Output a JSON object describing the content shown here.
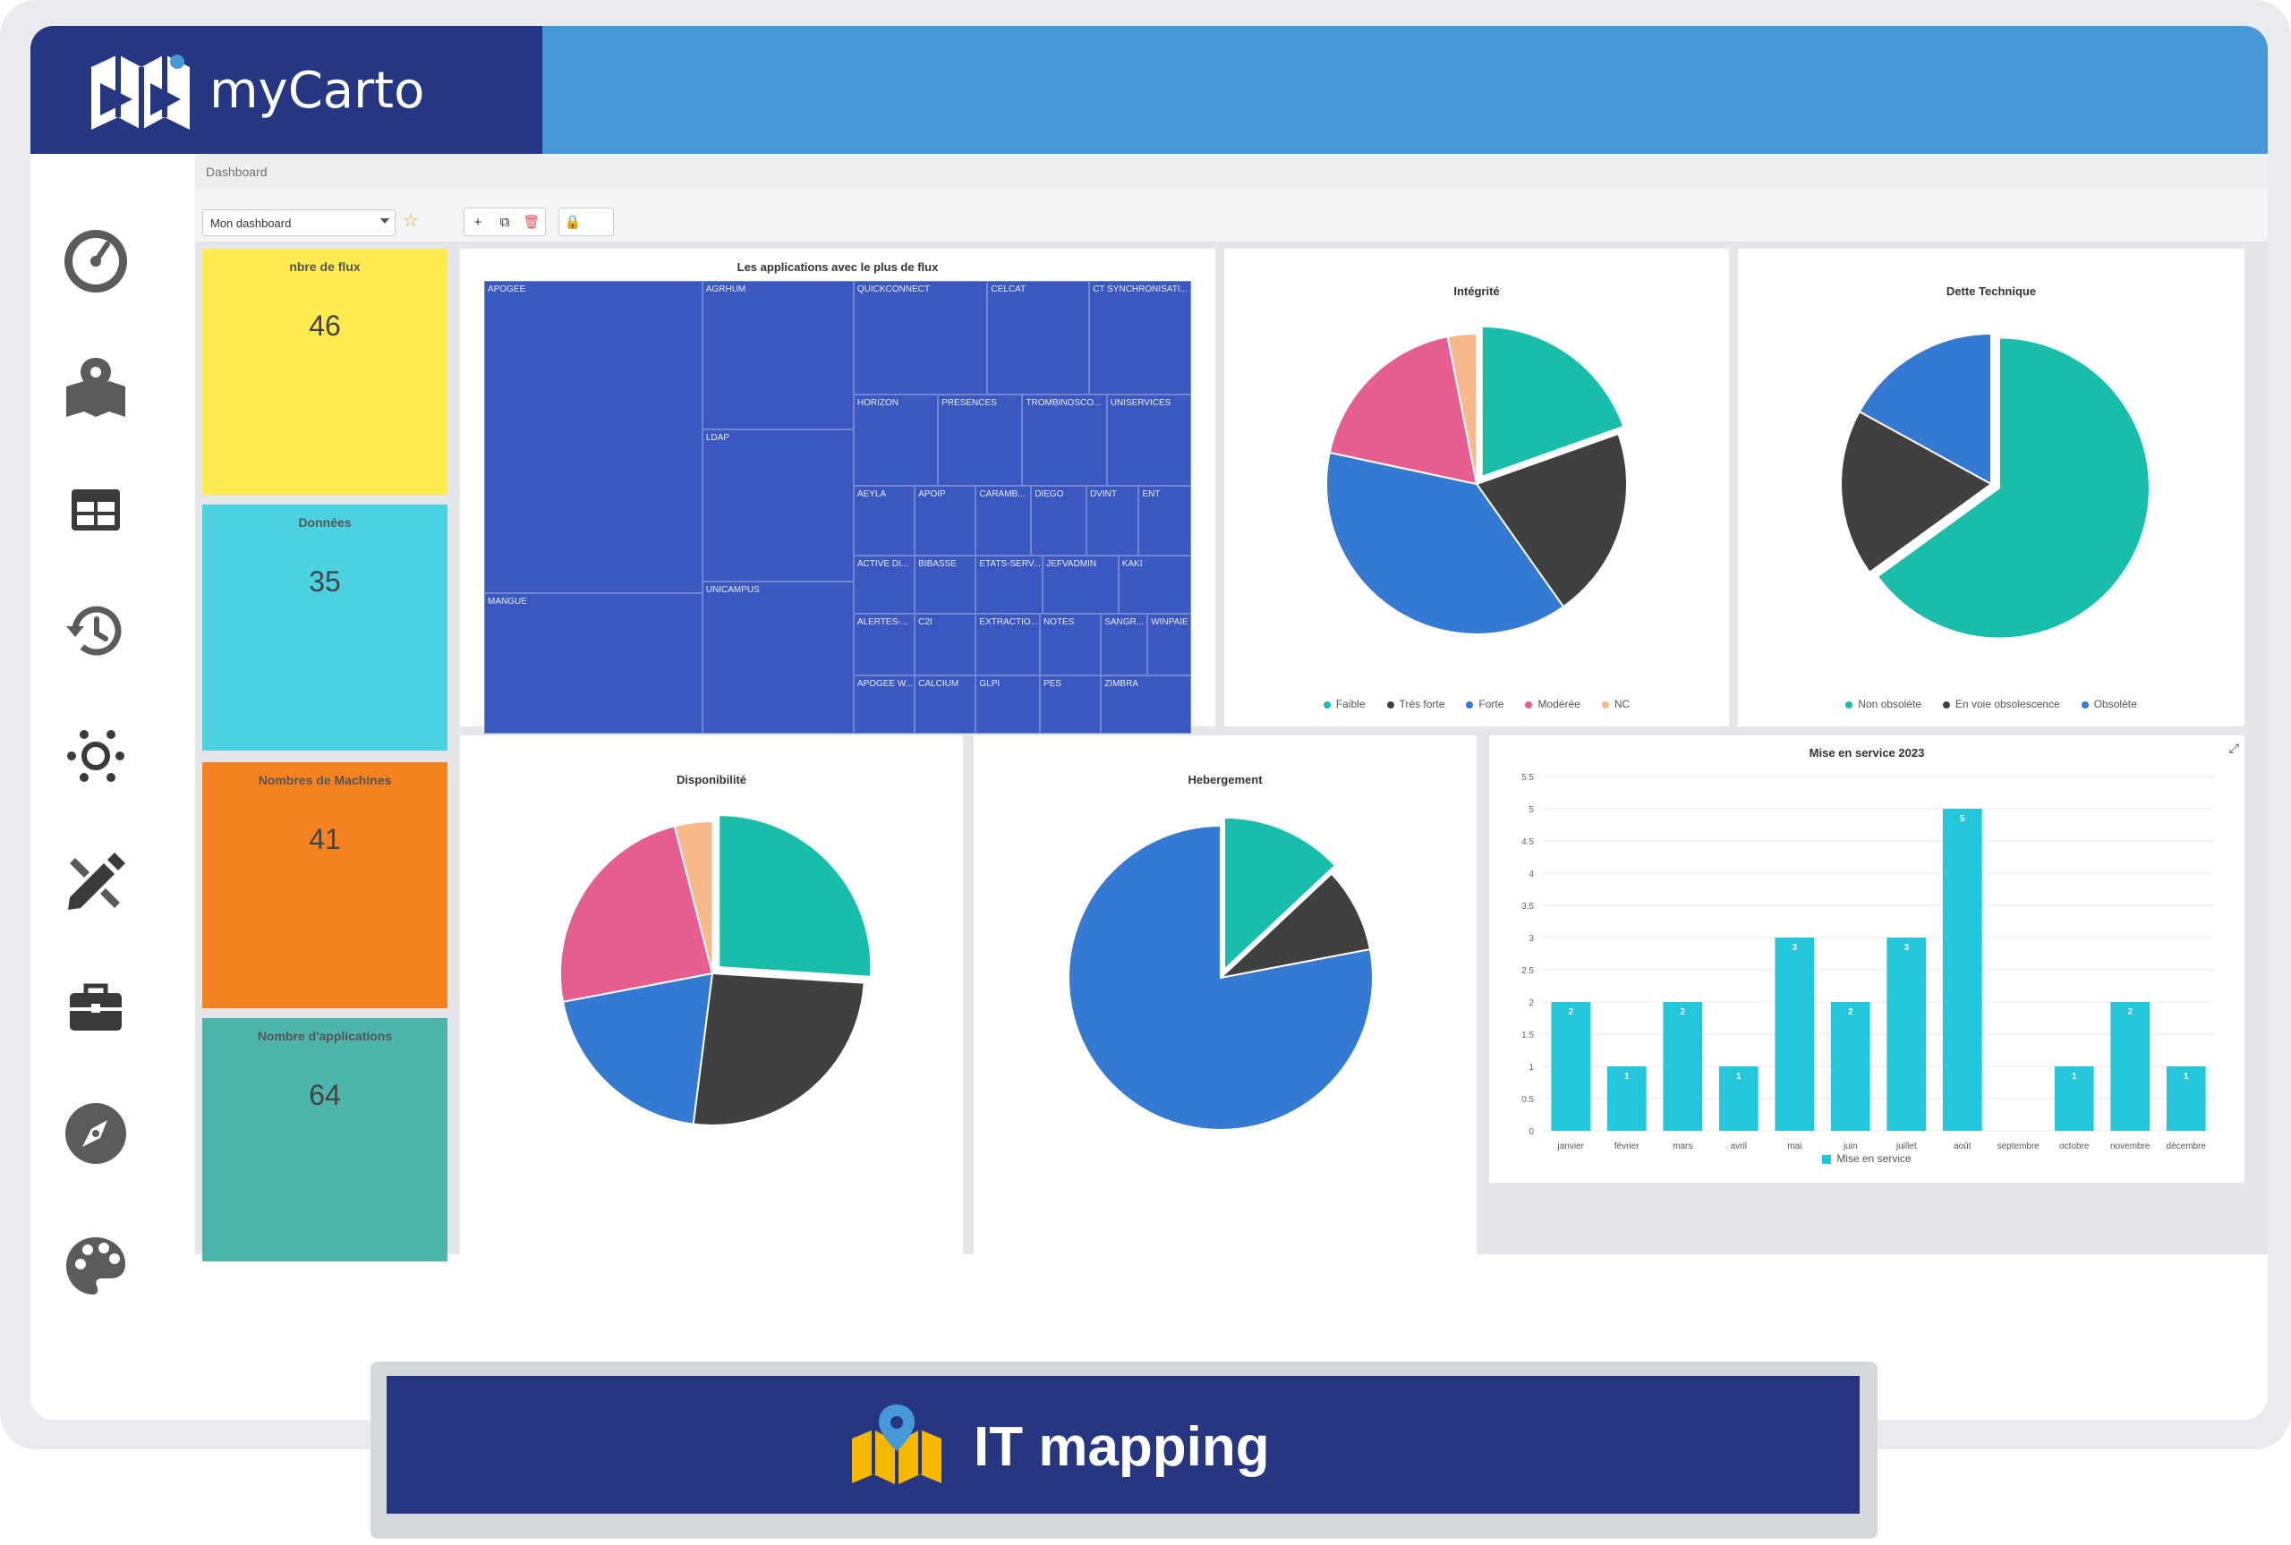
{
  "app": {
    "name": "myCarto"
  },
  "sidebar": {
    "items": [
      {
        "icon": "dashboard-gauge-icon"
      },
      {
        "icon": "map-pin-icon"
      },
      {
        "icon": "table-icon"
      },
      {
        "icon": "history-icon"
      },
      {
        "icon": "network-icon"
      },
      {
        "icon": "pencil-ruler-icon"
      },
      {
        "icon": "briefcase-icon"
      },
      {
        "icon": "compass-icon"
      },
      {
        "icon": "palette-icon"
      }
    ]
  },
  "breadcrumb": "Dashboard",
  "toolbar": {
    "dashboard_select": "Mon dashboard",
    "add_label": "+",
    "lock_label": "🔒"
  },
  "kpis": [
    {
      "label": "nbre de flux",
      "value": "46",
      "color": "#ffeb4f"
    },
    {
      "label": "Données",
      "value": "35",
      "color": "#4bd1e0"
    },
    {
      "label": "Nombres de Machines",
      "value": "41",
      "color": "#f58220"
    },
    {
      "label": "Nombre d'applications",
      "value": "64",
      "color": "#4db5ab"
    }
  ],
  "treemap": {
    "title": "Les applications avec le plus de flux",
    "cells": [
      "APOGEE",
      "AGRHUM",
      "QUICKCONNECT",
      "CELCAT",
      "CT SYNCHRONISATI...",
      "HORIZON",
      "PRESENCES",
      "TROMBINOSCO...",
      "UNISERVICES",
      "LDAP",
      "AEYLA",
      "APOIP",
      "CARAMB...",
      "DIEGO",
      "DVINT",
      "ENT",
      "ACTIVE DI...",
      "BIBASSE",
      "ETATS-SERV...",
      "JEFVADMIN",
      "KAKI",
      "MANGUE",
      "UNICAMPUS",
      "ALERTES-...",
      "C2I",
      "EXTRACTIO...",
      "NOTES",
      "SANGR...",
      "WINPAIE",
      "APOGEE W...",
      "CALCIUM",
      "GLPI",
      "PES",
      "ZIMBRA"
    ]
  },
  "legends": {
    "integrite": [
      "Faible",
      "Très forte",
      "Forte",
      "Modérée",
      "NC"
    ],
    "dette": [
      "Non obsolète",
      "En voie obsolescence",
      "Obsolète"
    ]
  },
  "chart_data": [
    {
      "type": "pie",
      "title": "Intégrité",
      "labels": [
        "Faible",
        "Très forte",
        "Forte",
        "Modérée",
        "NC"
      ],
      "values": [
        19,
        20,
        37,
        18,
        3
      ],
      "colors": [
        "#1abcaa",
        "#404040",
        "#3479d2",
        "#e65e8f",
        "#f7b98a"
      ],
      "legend": "bottom"
    },
    {
      "type": "pie",
      "title": "Dette Technique",
      "labels": [
        "Non obsolète",
        "En voie obsolescence",
        "Obsolète"
      ],
      "values": [
        65,
        18,
        17
      ],
      "colors": [
        "#1abcaa",
        "#404040",
        "#3479d2"
      ],
      "legend": "bottom"
    },
    {
      "type": "pie",
      "title": "Disponibilité",
      "values": [
        26,
        26,
        20,
        24,
        4
      ],
      "colors": [
        "#1abcaa",
        "#404040",
        "#3479d2",
        "#e65e8f",
        "#f7b98a"
      ]
    },
    {
      "type": "pie",
      "title": "Hebergement",
      "values": [
        13,
        9,
        78
      ],
      "colors": [
        "#1abcaa",
        "#404040",
        "#3479d2"
      ]
    },
    {
      "type": "bar",
      "title": "Mise en service 2023",
      "categories": [
        "janvier",
        "février",
        "mars",
        "avril",
        "mai",
        "juin",
        "juillet",
        "août",
        "septembre",
        "octobre",
        "novembre",
        "décembre"
      ],
      "series": [
        {
          "name": "Mise en service",
          "values": [
            2,
            1,
            2,
            1,
            3,
            2,
            3,
            5,
            0,
            1,
            2,
            1
          ]
        }
      ],
      "ylim": [
        0,
        5.5
      ],
      "yticks": [
        "0",
        "0.5",
        "1",
        "1.5",
        "2",
        "2.5",
        "3",
        "3.5",
        "4",
        "4.5",
        "5",
        "5.5"
      ],
      "color": "#26c6da",
      "legend": "bottom"
    }
  ],
  "footer": {
    "label": "IT mapping"
  }
}
